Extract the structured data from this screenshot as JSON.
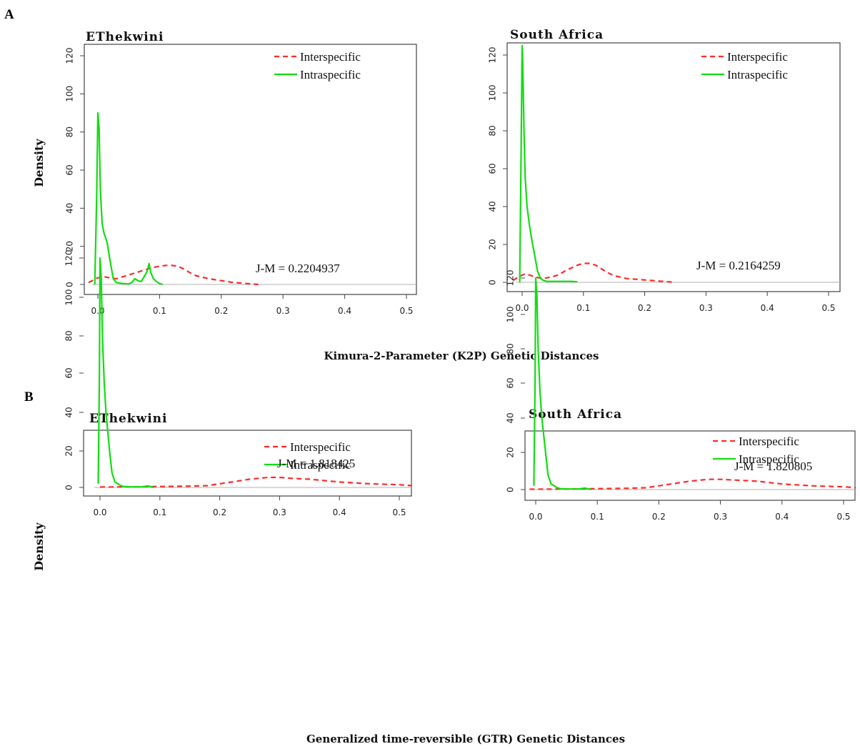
{
  "panel_labels": [
    "A",
    "B"
  ],
  "xlabels": [
    "Kimura-2-Parameter (K2P) Genetic Distances",
    "Generalized time-reversible (GTR) Genetic Distances"
  ],
  "colors": {
    "interspecific": "#ff2a2a",
    "intraspecific": "#11dd11",
    "baseline": "#b0b0b0"
  },
  "chart_data": [
    {
      "type": "line",
      "panel": "A",
      "title": "EThekwini",
      "ylabel": "Density",
      "xlim": [
        0,
        0.5
      ],
      "ylim": [
        0,
        120
      ],
      "x_ticks": [
        "0.0",
        "0.1",
        "0.2",
        "0.3",
        "0.4",
        "0.5"
      ],
      "y_ticks": [
        "0",
        "20",
        "40",
        "60",
        "80",
        "100",
        "120"
      ],
      "legend": [
        "Interspecific",
        "Intraspecific"
      ],
      "legend_position": "top-right",
      "annotation": "J-M =  0.2204937",
      "series": [
        {
          "name": "Interspecific",
          "style": "dashed",
          "x": [
            -0.015,
            0.0,
            0.01,
            0.02,
            0.03,
            0.04,
            0.05,
            0.06,
            0.07,
            0.08,
            0.09,
            0.1,
            0.11,
            0.12,
            0.13,
            0.14,
            0.15,
            0.16,
            0.18,
            0.2,
            0.22,
            0.24,
            0.26
          ],
          "y": [
            1,
            3.5,
            4,
            3.5,
            3,
            4,
            5,
            6,
            7,
            8,
            9,
            9.5,
            10,
            10,
            9.5,
            8,
            6,
            4.5,
            3,
            2,
            1,
            0.5,
            0
          ]
        },
        {
          "name": "Intraspecific",
          "style": "solid",
          "x": [
            -0.005,
            -0.002,
            0.0,
            0.002,
            0.004,
            0.007,
            0.01,
            0.015,
            0.02,
            0.025,
            0.03,
            0.04,
            0.05,
            0.055,
            0.06,
            0.065,
            0.07,
            0.075,
            0.08,
            0.083,
            0.086,
            0.09,
            0.095,
            0.1,
            0.105
          ],
          "y": [
            0,
            45,
            90,
            82,
            50,
            32,
            27,
            22,
            12,
            3,
            1,
            0.5,
            0.3,
            1,
            3,
            2,
            1.5,
            4,
            7,
            11,
            6,
            3,
            1.5,
            0.5,
            0
          ]
        }
      ]
    },
    {
      "type": "line",
      "panel": "A",
      "title": "South Africa",
      "ylabel": "",
      "xlim": [
        0,
        0.5
      ],
      "ylim": [
        0,
        120
      ],
      "x_ticks": [
        "0.0",
        "0.1",
        "0.2",
        "0.3",
        "0.4",
        "0.5"
      ],
      "y_ticks": [
        "0",
        "20",
        "40",
        "60",
        "80",
        "100",
        "120"
      ],
      "legend": [
        "Interspecific",
        "Intraspecific"
      ],
      "legend_position": "top-right",
      "annotation": "J-M = 0.2164259",
      "series": [
        {
          "name": "Interspecific",
          "style": "dashed",
          "x": [
            -0.015,
            -0.005,
            0.005,
            0.015,
            0.025,
            0.035,
            0.05,
            0.06,
            0.07,
            0.08,
            0.09,
            0.1,
            0.11,
            0.12,
            0.13,
            0.14,
            0.15,
            0.17,
            0.19,
            0.21,
            0.23,
            0.25
          ],
          "y": [
            1,
            3,
            4.5,
            3.5,
            2.5,
            2,
            3,
            4,
            6,
            7.5,
            9,
            10,
            10,
            9,
            7,
            5,
            3.5,
            2,
            1.5,
            1,
            0.5,
            0
          ]
        },
        {
          "name": "Intraspecific",
          "style": "solid",
          "x": [
            -0.004,
            -0.002,
            0.0,
            0.001,
            0.003,
            0.005,
            0.008,
            0.012,
            0.016,
            0.02,
            0.025,
            0.03,
            0.035,
            0.04,
            0.05,
            0.06,
            0.07,
            0.08,
            0.09
          ],
          "y": [
            0,
            60,
            125,
            115,
            80,
            55,
            40,
            30,
            22,
            15,
            6,
            2,
            1,
            0.5,
            0.5,
            0.5,
            0.5,
            0.5,
            0.3
          ]
        }
      ]
    },
    {
      "type": "line",
      "panel": "B",
      "title": "EThekwini",
      "ylabel": "Density",
      "xlim": [
        0,
        0.5
      ],
      "ylim": [
        0,
        120
      ],
      "x_ticks": [
        "0.0",
        "0.1",
        "0.2",
        "0.3",
        "0.4",
        "0.5"
      ],
      "y_ticks": [
        "0",
        "20",
        "40",
        "60",
        "80",
        "100",
        "120"
      ],
      "legend": [
        "Interspecific",
        "Intraspecific"
      ],
      "legend_position": "top-right",
      "annotation": "J-M = 1.818425",
      "series": [
        {
          "name": "Interspecific",
          "style": "dashed",
          "x": [
            0.0,
            0.05,
            0.1,
            0.15,
            0.18,
            0.2,
            0.22,
            0.25,
            0.28,
            0.3,
            0.32,
            0.35,
            0.4,
            0.45,
            0.5,
            0.52
          ],
          "y": [
            0.2,
            0.3,
            0.5,
            0.7,
            1,
            2,
            3,
            4.5,
            5.5,
            5.5,
            5,
            4.5,
            3,
            2,
            1.5,
            1
          ]
        },
        {
          "name": "Intraspecific",
          "style": "solid",
          "x": [
            -0.003,
            -0.001,
            0.0,
            0.002,
            0.004,
            0.007,
            0.01,
            0.013,
            0.016,
            0.02,
            0.025,
            0.03,
            0.035,
            0.04,
            0.05,
            0.06,
            0.07,
            0.08,
            0.09
          ],
          "y": [
            2,
            60,
            125,
            110,
            80,
            55,
            40,
            30,
            20,
            8,
            3,
            2,
            1,
            0.5,
            0.3,
            0.3,
            0.3,
            0.8,
            0
          ]
        }
      ]
    },
    {
      "type": "line",
      "panel": "B",
      "title": "South Africa",
      "ylabel": "",
      "xlim": [
        0,
        0.5
      ],
      "ylim": [
        0,
        120
      ],
      "x_ticks": [
        "0.0",
        "0.1",
        "0.2",
        "0.3",
        "0.4",
        "0.5"
      ],
      "y_ticks": [
        "0",
        "20",
        "40",
        "60",
        "80",
        "100",
        "120"
      ],
      "legend": [
        "Interspecific",
        "Intraspecific"
      ],
      "legend_position": "top-right",
      "annotation": "J-M = 1.820805",
      "series": [
        {
          "name": "Interspecific",
          "style": "dashed",
          "x": [
            -0.01,
            0.05,
            0.1,
            0.15,
            0.18,
            0.2,
            0.22,
            0.25,
            0.28,
            0.3,
            0.33,
            0.36,
            0.4,
            0.45,
            0.5,
            0.52
          ],
          "y": [
            0.2,
            0.3,
            0.5,
            0.7,
            1,
            2,
            3,
            4.5,
            5.5,
            5.5,
            5,
            4.5,
            3,
            2,
            1.5,
            1
          ]
        },
        {
          "name": "Intraspecific",
          "style": "solid",
          "x": [
            -0.003,
            -0.001,
            0.0,
            0.002,
            0.004,
            0.007,
            0.01,
            0.013,
            0.016,
            0.02,
            0.025,
            0.03,
            0.035,
            0.04,
            0.05,
            0.06,
            0.07,
            0.08,
            0.09
          ],
          "y": [
            2,
            60,
            125,
            110,
            80,
            55,
            40,
            30,
            20,
            8,
            3,
            2,
            1,
            0.5,
            0.3,
            0.3,
            0.3,
            0.8,
            0
          ]
        }
      ]
    }
  ]
}
